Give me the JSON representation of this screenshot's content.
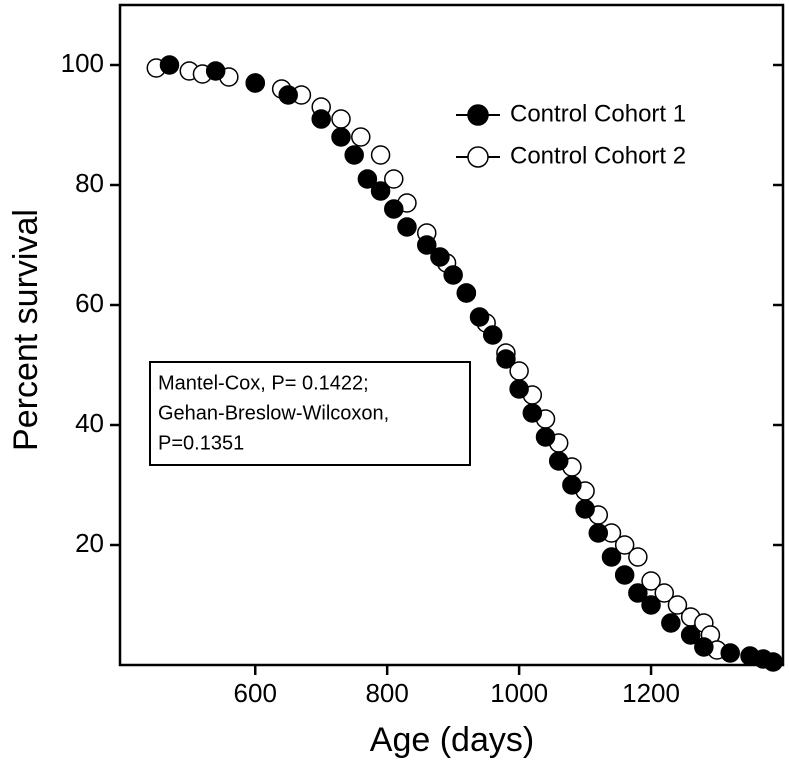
{
  "chart_data": {
    "type": "scatter",
    "xlabel": "Age (days)",
    "ylabel": "Percent survival",
    "xlim": [
      395,
      1400
    ],
    "ylim": [
      0,
      110
    ],
    "xticks": [
      600,
      800,
      1000,
      1200
    ],
    "yticks": [
      20,
      40,
      60,
      80,
      100
    ],
    "annotation": [
      "Mantel-Cox, P= 0.1422;",
      "Gehan-Breslow-Wilcoxon,",
      "P=0.1351"
    ],
    "series": [
      {
        "name": "Control Cohort 1",
        "color": "#000000",
        "fill": "#000000",
        "x": [
          470,
          540,
          600,
          650,
          700,
          730,
          750,
          770,
          790,
          810,
          830,
          860,
          880,
          900,
          920,
          940,
          960,
          980,
          1000,
          1020,
          1040,
          1060,
          1080,
          1100,
          1120,
          1140,
          1160,
          1180,
          1200,
          1230,
          1260,
          1280,
          1320,
          1350,
          1370,
          1385
        ],
        "values": [
          100,
          99,
          97,
          95,
          91,
          88,
          85,
          81,
          79,
          76,
          73,
          70,
          68,
          65,
          62,
          58,
          55,
          51,
          46,
          42,
          38,
          34,
          30,
          26,
          22,
          18,
          15,
          12,
          10,
          7,
          5,
          3,
          2,
          1.5,
          1,
          0.5
        ]
      },
      {
        "name": "Control Cohort 2",
        "color": "#000000",
        "fill": "#ffffff",
        "x": [
          450,
          500,
          520,
          560,
          600,
          640,
          670,
          700,
          730,
          760,
          790,
          810,
          830,
          860,
          890,
          920,
          950,
          980,
          1000,
          1020,
          1040,
          1060,
          1080,
          1100,
          1120,
          1140,
          1160,
          1180,
          1200,
          1220,
          1240,
          1260,
          1280,
          1290,
          1300
        ],
        "values": [
          99.5,
          99,
          98.5,
          98,
          97,
          96,
          95,
          93,
          91,
          88,
          85,
          81,
          77,
          72,
          67,
          62,
          57,
          52,
          49,
          45,
          41,
          37,
          33,
          29,
          25,
          22,
          20,
          18,
          14,
          12,
          10,
          8,
          7,
          5,
          2.5
        ]
      }
    ]
  }
}
